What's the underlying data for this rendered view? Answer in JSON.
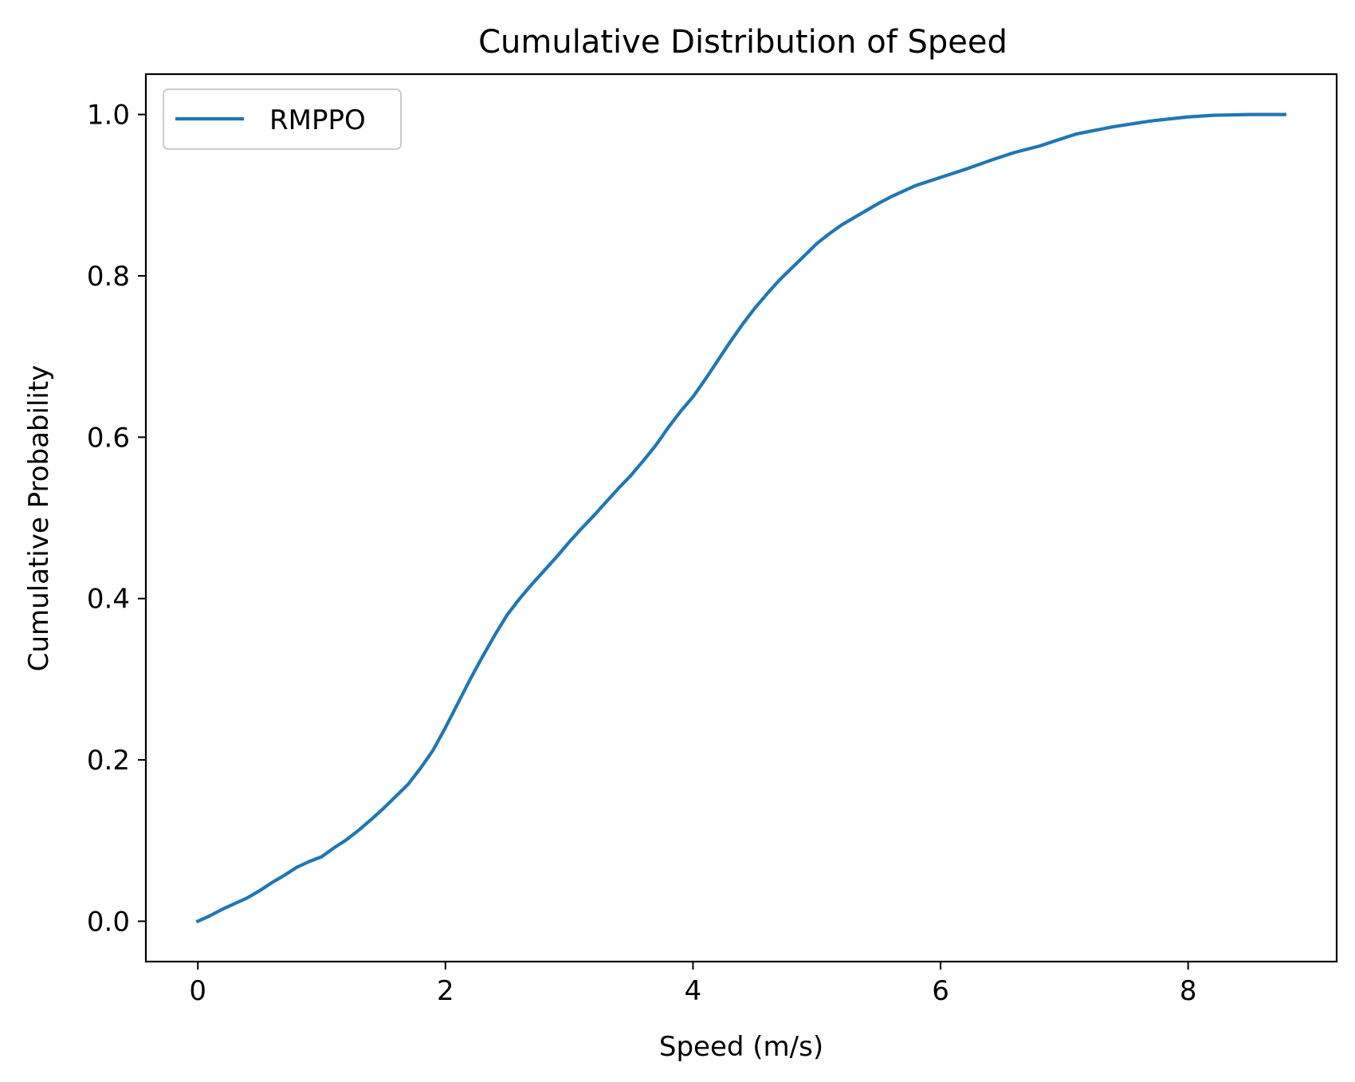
{
  "chart_data": {
    "type": "line",
    "title": "Cumulative Distribution of Speed",
    "xlabel": "Speed (m/s)",
    "ylabel": "Cumulative Probability",
    "xlim": [
      -0.42,
      9.2
    ],
    "ylim": [
      -0.05,
      1.05
    ],
    "xticks": [
      0,
      2,
      4,
      6,
      8
    ],
    "xtick_labels": [
      "0",
      "2",
      "4",
      "6",
      "8"
    ],
    "yticks": [
      0.0,
      0.2,
      0.4,
      0.6,
      0.8,
      1.0
    ],
    "ytick_labels": [
      "0.0",
      "0.2",
      "0.4",
      "0.6",
      "0.8",
      "1.0"
    ],
    "grid": false,
    "legend_position": "top-left",
    "series": [
      {
        "name": "RMPPO",
        "color": "#1f77b4",
        "x": [
          0.0,
          0.1,
          0.2,
          0.3,
          0.4,
          0.5,
          0.6,
          0.7,
          0.8,
          0.9,
          1.0,
          1.1,
          1.2,
          1.3,
          1.4,
          1.5,
          1.6,
          1.7,
          1.8,
          1.9,
          2.0,
          2.1,
          2.2,
          2.3,
          2.4,
          2.5,
          2.6,
          2.7,
          2.8,
          2.9,
          3.0,
          3.1,
          3.2,
          3.3,
          3.4,
          3.5,
          3.6,
          3.7,
          3.8,
          3.9,
          4.0,
          4.1,
          4.2,
          4.3,
          4.4,
          4.5,
          4.6,
          4.7,
          4.8,
          4.9,
          5.0,
          5.1,
          5.2,
          5.3,
          5.4,
          5.5,
          5.6,
          5.7,
          5.8,
          5.9,
          6.0,
          6.2,
          6.4,
          6.6,
          6.8,
          7.0,
          7.1,
          7.4,
          7.7,
          8.0,
          8.2,
          8.5,
          8.78
        ],
        "y": [
          0.0,
          0.007,
          0.015,
          0.022,
          0.029,
          0.038,
          0.048,
          0.057,
          0.067,
          0.074,
          0.08,
          0.091,
          0.101,
          0.113,
          0.126,
          0.14,
          0.155,
          0.17,
          0.19,
          0.212,
          0.24,
          0.27,
          0.3,
          0.328,
          0.355,
          0.38,
          0.4,
          0.418,
          0.435,
          0.452,
          0.47,
          0.487,
          0.503,
          0.52,
          0.537,
          0.553,
          0.571,
          0.59,
          0.612,
          0.632,
          0.65,
          0.672,
          0.695,
          0.718,
          0.74,
          0.76,
          0.778,
          0.795,
          0.81,
          0.825,
          0.84,
          0.852,
          0.863,
          0.872,
          0.881,
          0.89,
          0.898,
          0.905,
          0.912,
          0.917,
          0.922,
          0.932,
          0.943,
          0.953,
          0.961,
          0.971,
          0.976,
          0.985,
          0.992,
          0.997,
          0.999,
          1.0,
          1.0
        ]
      }
    ]
  }
}
